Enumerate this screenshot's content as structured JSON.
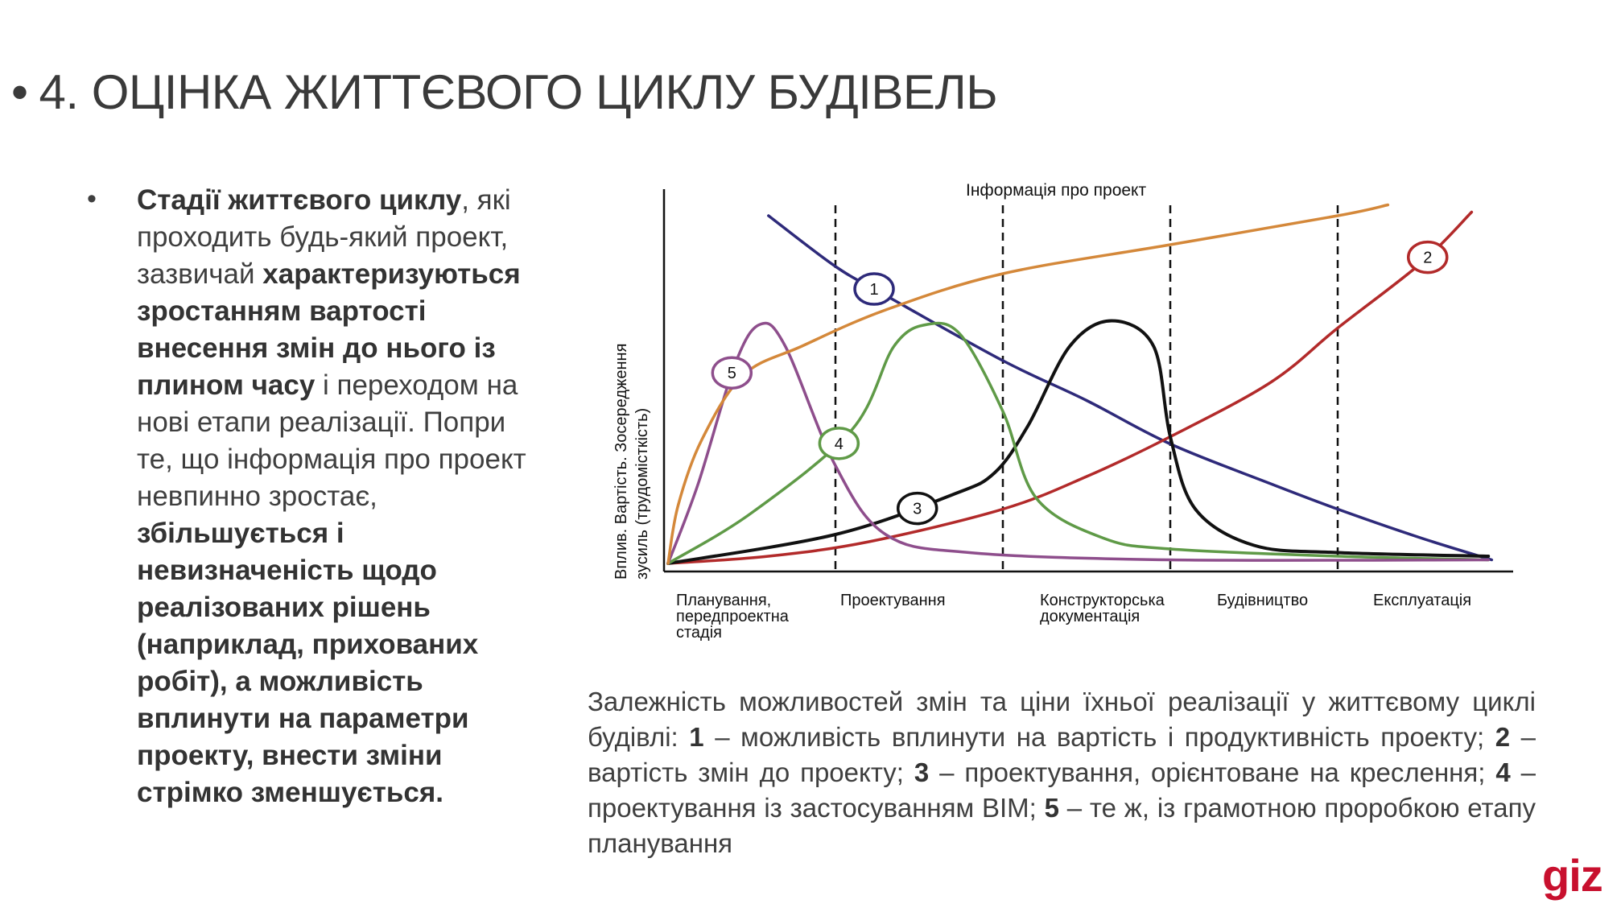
{
  "slide": {
    "title": "4. ОЦІНКА ЖИТТЄВОГО ЦИКЛУ БУДІВЕЛЬ",
    "bullet_char": "•"
  },
  "body": {
    "bullet_char": "•",
    "segments": [
      {
        "text": "Стадії життєвого циклу",
        "bold": true
      },
      {
        "text": ", які проходить будь-який проект, зазвичай ",
        "bold": false
      },
      {
        "text": "характеризуються зростанням вартості внесення змін до нього із плином часу",
        "bold": true
      },
      {
        "text": " і переходом на нові етапи реалізації. Попри те, що інформація про проект невпинно зростає, ",
        "bold": false
      },
      {
        "text": "збільшується і невизначеність щодо реалізованих рішень (наприклад, прихованих робіт), а можливість вплинути на параметри проекту, внести зміни стрімко зменшується.",
        "bold": true
      }
    ]
  },
  "chart_data": {
    "type": "line",
    "top_label": "Інформація про проект",
    "ylabel_line1": "Вплив. Вартість. Зосередження",
    "ylabel_line2": "зусиль (трудомісткість)",
    "stages": [
      "Планування, передпроектна стадія",
      "Проектування",
      "Конструкторська документація",
      "Будівництво",
      "Експлуатація"
    ],
    "stage_lines": [
      "Планування,",
      "передпроектна",
      "стадія",
      "Проектування",
      "Конструкторська",
      "документація",
      "Будівництво",
      "Експлуатація"
    ],
    "xlim": [
      0,
      5
    ],
    "ylim": [
      0,
      1
    ],
    "boundaries": [
      1,
      2,
      3,
      4
    ],
    "series": [
      {
        "name": "1",
        "color": "#2e2a7a",
        "points": [
          [
            0.6,
            0.96
          ],
          [
            1,
            0.82
          ],
          [
            1.3,
            0.74
          ],
          [
            2,
            0.56
          ],
          [
            2.5,
            0.45
          ],
          [
            3,
            0.33
          ],
          [
            3.6,
            0.22
          ],
          [
            4,
            0.15
          ],
          [
            4.5,
            0.07
          ],
          [
            4.92,
            0.01
          ]
        ],
        "marker_t": 0.16
      },
      {
        "name": "2",
        "color": "#b22a2a",
        "points": [
          [
            0,
            0.0
          ],
          [
            0.6,
            0.02
          ],
          [
            1.2,
            0.06
          ],
          [
            2,
            0.15
          ],
          [
            2.5,
            0.24
          ],
          [
            3,
            0.35
          ],
          [
            3.6,
            0.5
          ],
          [
            4,
            0.65
          ],
          [
            4.5,
            0.83
          ],
          [
            4.8,
            0.97
          ]
        ],
        "marker_t": 0.93
      },
      {
        "name": "3",
        "color": "#111111",
        "points": [
          [
            0,
            0.0
          ],
          [
            1,
            0.08
          ],
          [
            1.7,
            0.19
          ],
          [
            1.95,
            0.25
          ],
          [
            2.15,
            0.38
          ],
          [
            2.4,
            0.6
          ],
          [
            2.65,
            0.67
          ],
          [
            2.9,
            0.6
          ],
          [
            3.0,
            0.35
          ],
          [
            3.15,
            0.15
          ],
          [
            3.5,
            0.05
          ],
          [
            4,
            0.03
          ],
          [
            4.9,
            0.02
          ]
        ],
        "marker_t": 0.24
      },
      {
        "name": "4",
        "color": "#5f9a47",
        "points": [
          [
            0,
            0.0
          ],
          [
            0.5,
            0.14
          ],
          [
            1.1,
            0.37
          ],
          [
            1.35,
            0.6
          ],
          [
            1.55,
            0.66
          ],
          [
            1.75,
            0.63
          ],
          [
            2,
            0.42
          ],
          [
            2.2,
            0.18
          ],
          [
            2.6,
            0.07
          ],
          [
            3,
            0.04
          ],
          [
            4,
            0.02
          ],
          [
            4.9,
            0.01
          ]
        ],
        "marker_t": 0.2
      },
      {
        "name": "5",
        "color": "#8e4e8c",
        "points": [
          [
            0,
            0.0
          ],
          [
            0.18,
            0.22
          ],
          [
            0.4,
            0.55
          ],
          [
            0.55,
            0.66
          ],
          [
            0.7,
            0.6
          ],
          [
            1.0,
            0.27
          ],
          [
            1.3,
            0.08
          ],
          [
            1.8,
            0.03
          ],
          [
            3,
            0.01
          ],
          [
            4.9,
            0.01
          ]
        ],
        "marker_t": 0.18
      },
      {
        "name": "",
        "color": "#d4883a",
        "points": [
          [
            0,
            0.0
          ],
          [
            0.06,
            0.16
          ],
          [
            0.2,
            0.34
          ],
          [
            0.45,
            0.52
          ],
          [
            0.8,
            0.6
          ],
          [
            1.3,
            0.7
          ],
          [
            2,
            0.8
          ],
          [
            3,
            0.88
          ],
          [
            4,
            0.96
          ],
          [
            4.3,
            0.99
          ]
        ],
        "marker_t": null
      }
    ]
  },
  "caption": {
    "segments": [
      {
        "text": "Залежність можливостей змін та ціни їхньої реалізації у життєвому циклі будівлі: ",
        "bold": false
      },
      {
        "text": "1",
        "bold": true
      },
      {
        "text": " – можливість вплинути на вартість і продуктивність проекту; ",
        "bold": false
      },
      {
        "text": "2",
        "bold": true
      },
      {
        "text": " – вартість змін до проекту; ",
        "bold": false
      },
      {
        "text": "3",
        "bold": true
      },
      {
        "text": " – проектування, орієнтоване на креслення; ",
        "bold": false
      },
      {
        "text": "4",
        "bold": true
      },
      {
        "text": " – проектування із застосуванням BIM; ",
        "bold": false
      },
      {
        "text": "5",
        "bold": true
      },
      {
        "text": " – те ж, із грамотною проробкою етапу планування",
        "bold": false
      }
    ]
  },
  "logo": {
    "text": "giz",
    "color": "#c8102e"
  }
}
